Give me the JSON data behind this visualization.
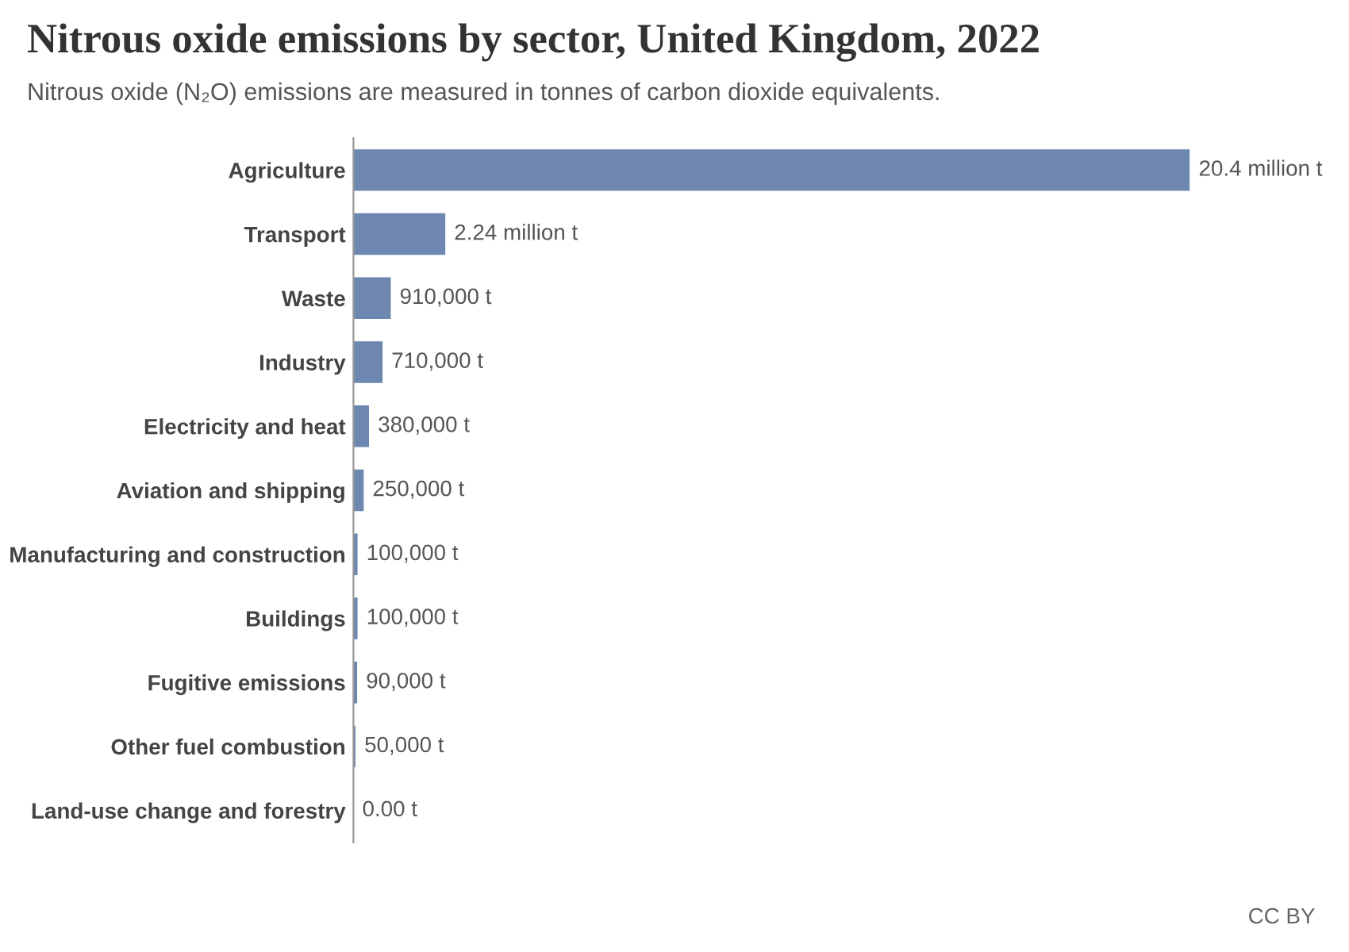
{
  "chart_data": {
    "type": "bar",
    "orientation": "horizontal",
    "title": "Nitrous oxide emissions by sector, United Kingdom, 2022",
    "subtitle": "Nitrous oxide (N₂O) emissions are measured in tonnes of carbon dioxide equivalents.",
    "categories": [
      "Agriculture",
      "Transport",
      "Waste",
      "Industry",
      "Electricity and heat",
      "Aviation and shipping",
      "Manufacturing and construction",
      "Buildings",
      "Fugitive emissions",
      "Other fuel combustion",
      "Land-use change and forestry"
    ],
    "values": [
      20400000,
      2240000,
      910000,
      710000,
      380000,
      250000,
      100000,
      100000,
      90000,
      50000,
      0
    ],
    "value_labels": [
      "20.4 million t",
      "2.24 million t",
      "910,000 t",
      "710,000 t",
      "380,000 t",
      "250,000 t",
      "100,000 t",
      "100,000 t",
      "90,000 t",
      "50,000 t",
      "0.00 t"
    ],
    "color": "#6d87b1",
    "tick_labels": "y",
    "grid": false,
    "legend": false,
    "annotations": [
      "CC BY"
    ]
  }
}
